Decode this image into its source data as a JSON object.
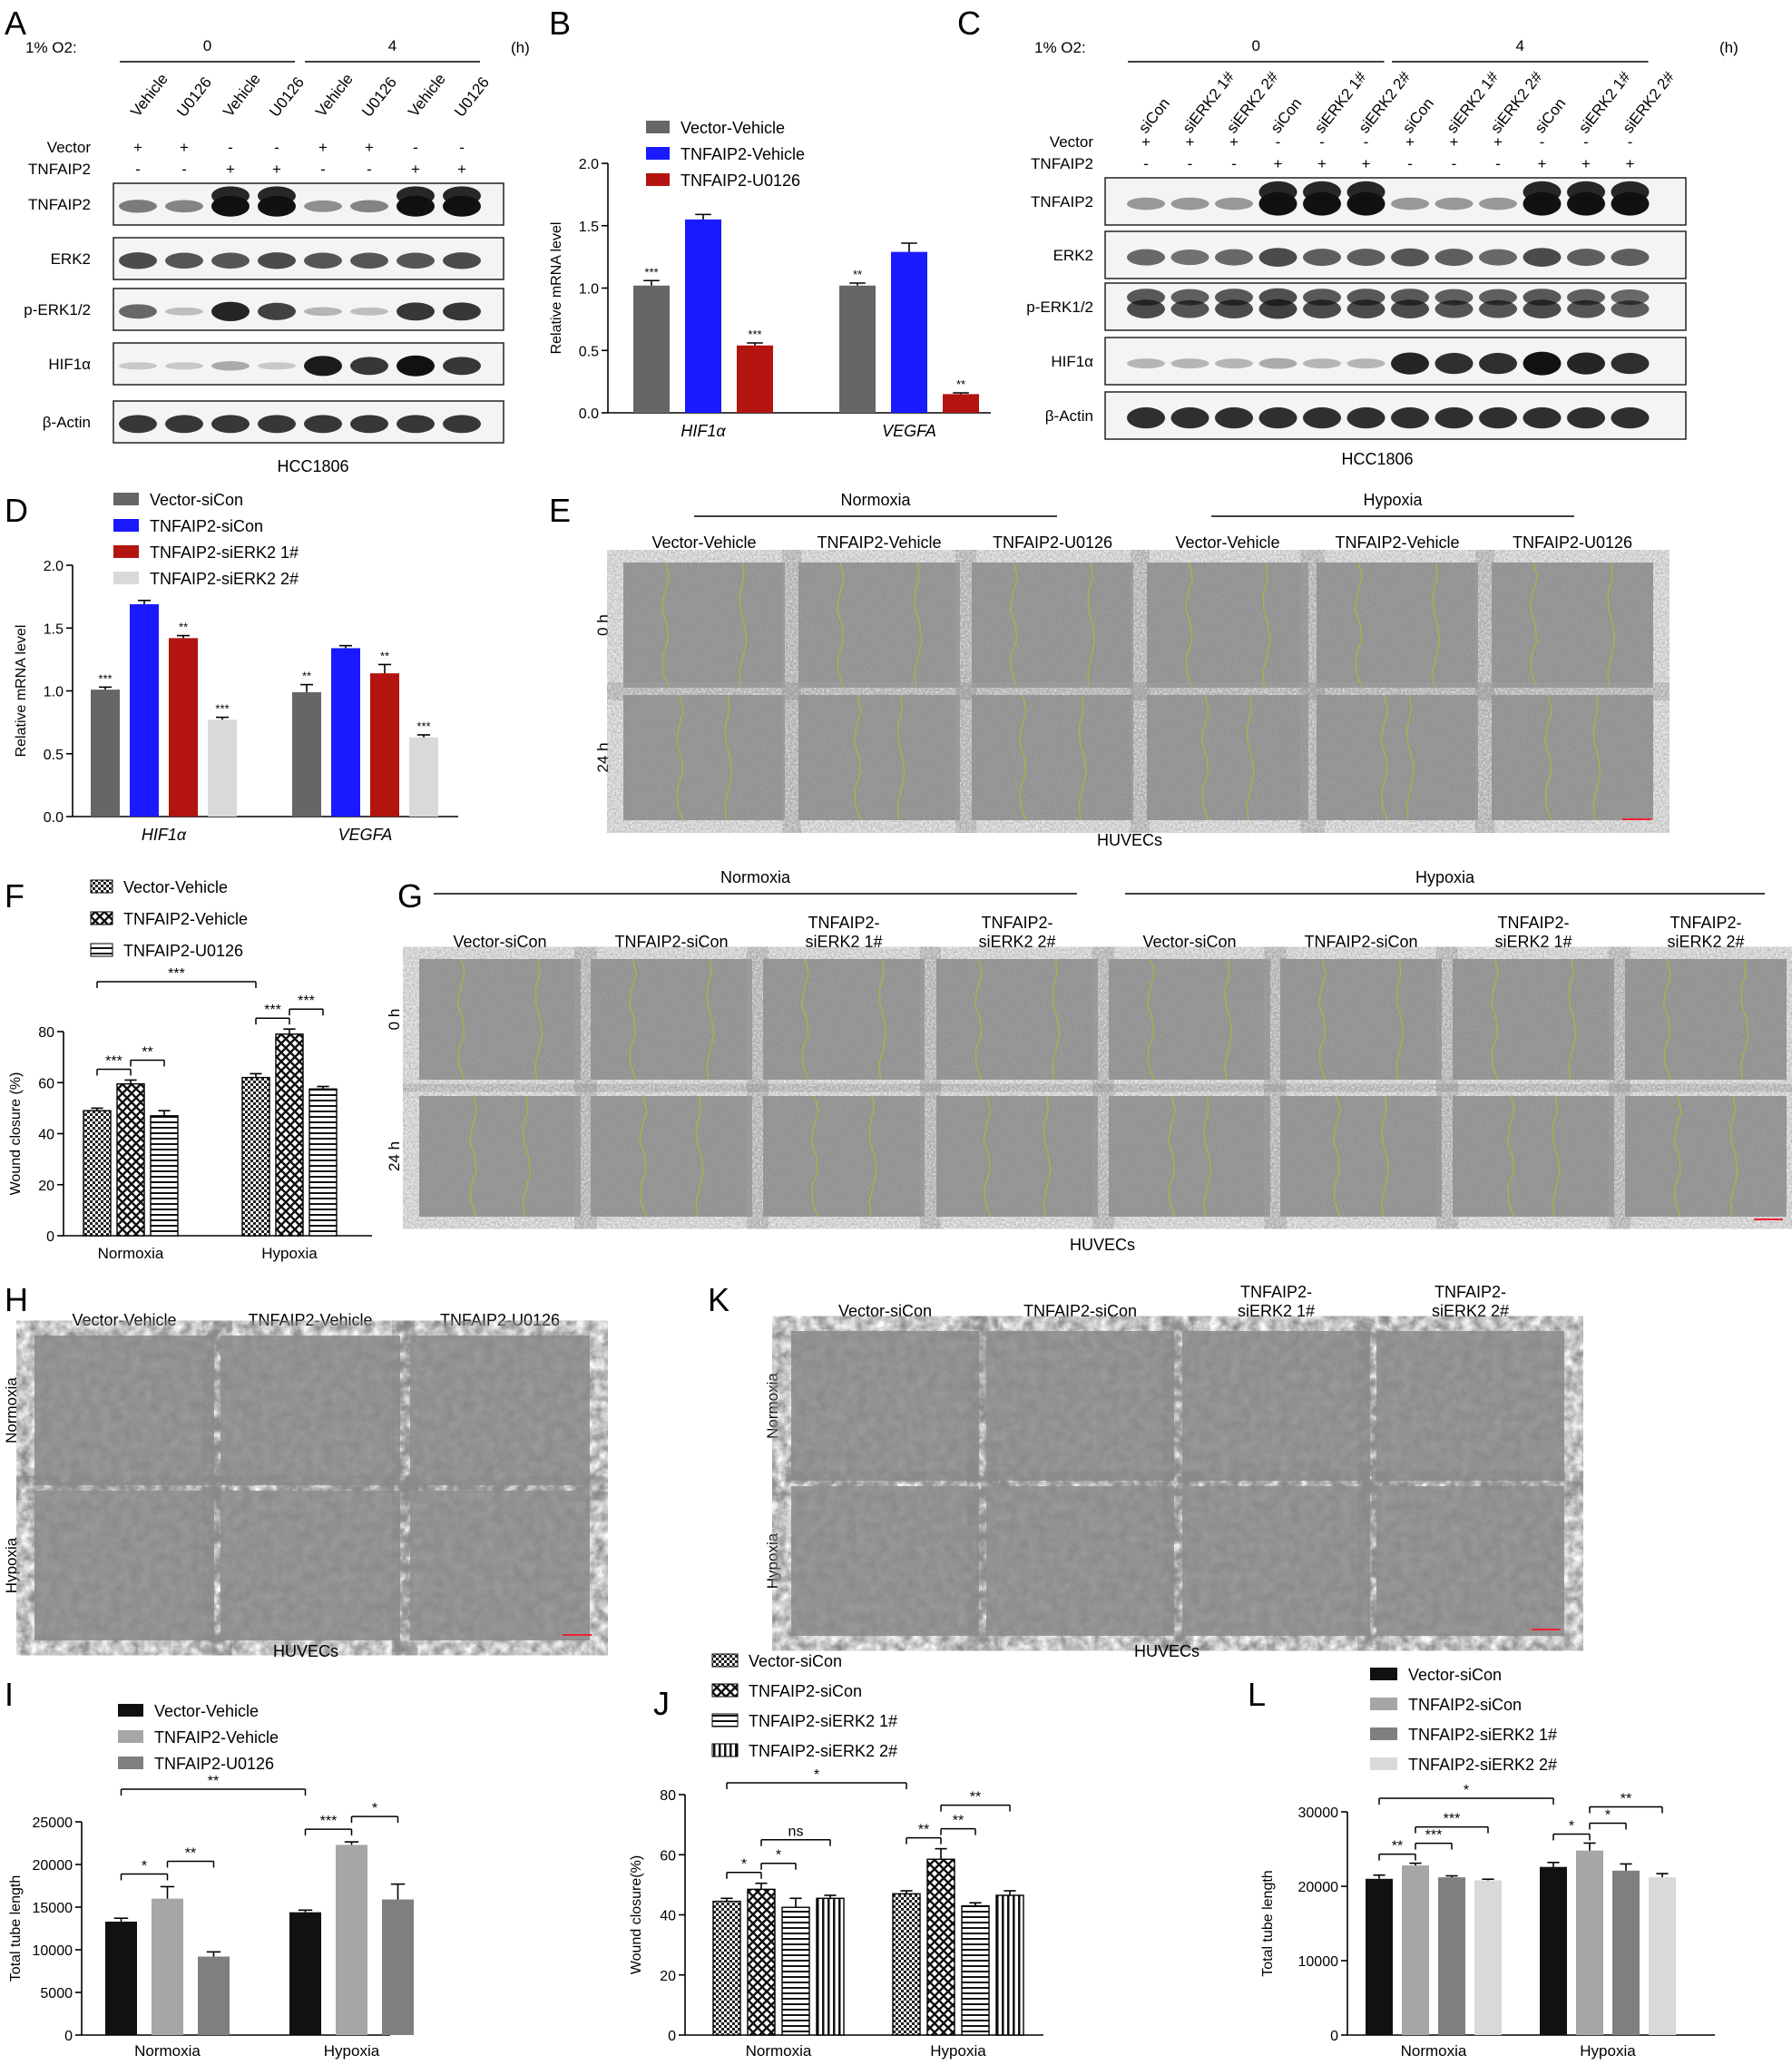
{
  "panel_letters": [
    "A",
    "B",
    "C",
    "D",
    "E",
    "F",
    "G",
    "H",
    "I",
    "J",
    "K",
    "L"
  ],
  "colors": {
    "gray": "#666666",
    "blue": "#1a1aff",
    "red": "#b3140f",
    "light": "#d9d9d9",
    "black": "#111111",
    "midgray": "#a6a6a6",
    "darkgray": "#7f7f7f",
    "wound": "#9bbf3a"
  },
  "A": {
    "o2_label": "1% O2:",
    "time_unit": "(h)",
    "times": [
      "0",
      "4"
    ],
    "lanes": [
      "Vehicle",
      "U0126",
      "Vehicle",
      "U0126",
      "Vehicle",
      "U0126",
      "Vehicle",
      "U0126"
    ],
    "vector_label": "Vector",
    "vector_signs": [
      "+",
      "+",
      "-",
      "-",
      "+",
      "+",
      "-",
      "-"
    ],
    "tnfaip2_label": "TNFAIP2",
    "tnfaip2_signs": [
      "-",
      "-",
      "+",
      "+",
      "-",
      "-",
      "+",
      "+"
    ],
    "blots": [
      "TNFAIP2",
      "ERK2",
      "p-ERK1/2",
      "HIF1α",
      "β-Actin"
    ],
    "cell_line": "HCC1806"
  },
  "C": {
    "o2_label": "1% O2:",
    "time_unit": "(h)",
    "times": [
      "0",
      "4"
    ],
    "lanes": [
      "siCon",
      "siERK2 1#",
      "siERK2 2#",
      "siCon",
      "siERK2 1#",
      "siERK2 2#",
      "siCon",
      "siERK2 1#",
      "siERK2 2#",
      "siCon",
      "siERK2 1#",
      "siERK2 2#"
    ],
    "vector_label": "Vector",
    "vector_signs": [
      "+",
      "+",
      "+",
      "-",
      "-",
      "-",
      "+",
      "+",
      "+",
      "-",
      "-",
      "-"
    ],
    "tnfaip2_label": "TNFAIP2",
    "tnfaip2_signs": [
      "-",
      "-",
      "-",
      "+",
      "+",
      "+",
      "-",
      "-",
      "-",
      "+",
      "+",
      "+"
    ],
    "blots": [
      "TNFAIP2",
      "ERK2",
      "p-ERK1/2",
      "HIF1α",
      "β-Actin"
    ],
    "cell_line": "HCC1806"
  },
  "E": {
    "groups": [
      "Normoxia",
      "Hypoxia"
    ],
    "columns": [
      "Vector-Vehicle",
      "TNFAIP2-Vehicle",
      "TNFAIP2-U0126",
      "Vector-Vehicle",
      "TNFAIP2-Vehicle",
      "TNFAIP2-U0126"
    ],
    "rows": [
      "0 h",
      "24 h"
    ],
    "caption": "HUVECs"
  },
  "I": {
    "groups": [
      "Normoxia",
      "Hypoxia"
    ],
    "columns": [
      [
        "Vector-siCon"
      ],
      [
        "TNFAIP2-siCon"
      ],
      [
        "TNFAIP2-",
        "siERK2 1#"
      ],
      [
        "TNFAIP2-",
        "siERK2 2#"
      ],
      [
        "Vector-siCon"
      ],
      [
        "TNFAIP2-siCon"
      ],
      [
        "TNFAIP2-",
        "siERK2 1#"
      ],
      [
        "TNFAIP2-",
        "siERK2 2#"
      ]
    ],
    "rows": [
      "0 h",
      "24 h"
    ],
    "caption": "HUVECs"
  },
  "G": {
    "columns": [
      "Vector-Vehicle",
      "TNFAIP2-Vehicle",
      "TNFAIP2-U0126"
    ],
    "rows": [
      "Normoxia",
      "Hypoxia"
    ],
    "caption": "HUVECs"
  },
  "K": {
    "columns": [
      [
        "Vector-siCon"
      ],
      [
        "TNFAIP2-siCon"
      ],
      [
        "TNFAIP2-",
        "siERK2 1#"
      ],
      [
        "TNFAIP2-",
        "siERK2 2#"
      ]
    ],
    "rows": [
      "Normoxia",
      "Hypoxia"
    ],
    "caption": "HUVECs"
  },
  "chart_data": [
    {
      "panel": "B",
      "type": "bar",
      "categories": [
        "HIF1α",
        "VEGFA"
      ],
      "ylabel": "Relative mRNA level",
      "ylim": [
        0,
        2.0
      ],
      "yticks": [
        "0.0",
        "0.5",
        "1.0",
        "1.5",
        "2.0"
      ],
      "series": [
        {
          "name": "Vector-Vehicle",
          "color": "#666666",
          "values": [
            1.02,
            1.02
          ],
          "errors": [
            0.04,
            0.02
          ],
          "sig": [
            "***",
            "**"
          ]
        },
        {
          "name": "TNFAIP2-Vehicle",
          "color": "#1a1aff",
          "values": [
            1.55,
            1.29
          ],
          "errors": [
            0.04,
            0.07
          ],
          "sig": [
            "",
            ""
          ]
        },
        {
          "name": "TNFAIP2-U0126",
          "color": "#b3140f",
          "values": [
            0.54,
            0.15
          ],
          "errors": [
            0.02,
            0.01
          ],
          "sig": [
            "***",
            "**"
          ]
        }
      ]
    },
    {
      "panel": "D",
      "type": "bar",
      "categories": [
        "HIF1α",
        "VEGFA"
      ],
      "ylabel": "Relative mRNA level",
      "ylim": [
        0,
        2.0
      ],
      "yticks": [
        "0.0",
        "0.5",
        "1.0",
        "1.5",
        "2.0"
      ],
      "series": [
        {
          "name": "Vector-siCon",
          "color": "#666666",
          "values": [
            1.01,
            0.99
          ],
          "errors": [
            0.02,
            0.06
          ],
          "sig": [
            "***",
            "**"
          ]
        },
        {
          "name": "TNFAIP2-siCon",
          "color": "#1a1aff",
          "values": [
            1.69,
            1.34
          ],
          "errors": [
            0.03,
            0.02
          ],
          "sig": [
            "",
            ""
          ]
        },
        {
          "name": "TNFAIP2-siERK2 1#",
          "color": "#b3140f",
          "values": [
            1.42,
            1.14
          ],
          "errors": [
            0.02,
            0.07
          ],
          "sig": [
            "**",
            "**"
          ]
        },
        {
          "name": "TNFAIP2-siERK2 2#",
          "color": "#d9d9d9",
          "values": [
            0.77,
            0.63
          ],
          "errors": [
            0.02,
            0.02
          ],
          "sig": [
            "***",
            "***"
          ]
        }
      ]
    },
    {
      "panel": "F",
      "type": "bar",
      "categories": [
        "Normoxia",
        "Hypoxia"
      ],
      "ylabel": "Wound closure (%)",
      "ylim": [
        0,
        80
      ],
      "yticks": [
        "0",
        "20",
        "40",
        "60",
        "80"
      ],
      "series": [
        {
          "name": "Vector-Vehicle",
          "pattern": "checker",
          "values": [
            49,
            62
          ],
          "errors": [
            1,
            1.5
          ]
        },
        {
          "name": "TNFAIP2-Vehicle",
          "pattern": "cross",
          "values": [
            59.5,
            79
          ],
          "errors": [
            1.5,
            2
          ]
        },
        {
          "name": "TNFAIP2-U0126",
          "pattern": "hlines",
          "values": [
            47,
            57.5
          ],
          "errors": [
            2,
            1
          ]
        }
      ],
      "brackets": [
        {
          "from": [
            0,
            0
          ],
          "to": [
            0,
            1
          ],
          "label": "***"
        },
        {
          "from": [
            0,
            1
          ],
          "to": [
            0,
            2
          ],
          "label": "**"
        },
        {
          "from": [
            1,
            0
          ],
          "to": [
            1,
            1
          ],
          "label": "***"
        },
        {
          "from": [
            1,
            1
          ],
          "to": [
            1,
            2
          ],
          "label": "***"
        },
        {
          "from": [
            0,
            0
          ],
          "to": [
            1,
            0
          ],
          "label": "***"
        }
      ]
    },
    {
      "panel": "H",
      "type": "bar",
      "categories": [
        "Normoxia",
        "Hypoxia"
      ],
      "ylabel": "Total tube length",
      "ylim": [
        0,
        25000
      ],
      "yticks": [
        "0",
        "5000",
        "10000",
        "15000",
        "20000",
        "25000"
      ],
      "series": [
        {
          "name": "Vector-Vehicle",
          "color": "#111111",
          "values": [
            13300,
            14400
          ],
          "errors": [
            400,
            250
          ]
        },
        {
          "name": "TNFAIP2-Vehicle",
          "color": "#a6a6a6",
          "values": [
            16000,
            22300
          ],
          "errors": [
            1400,
            350
          ]
        },
        {
          "name": "TNFAIP2-U0126",
          "color": "#7f7f7f",
          "values": [
            9200,
            15900
          ],
          "errors": [
            550,
            1800
          ]
        }
      ],
      "brackets": [
        {
          "from": [
            0,
            0
          ],
          "to": [
            0,
            1
          ],
          "label": "*"
        },
        {
          "from": [
            0,
            1
          ],
          "to": [
            0,
            2
          ],
          "label": "**"
        },
        {
          "from": [
            1,
            0
          ],
          "to": [
            1,
            1
          ],
          "label": "***"
        },
        {
          "from": [
            1,
            1
          ],
          "to": [
            1,
            2
          ],
          "label": "*"
        },
        {
          "from": [
            0,
            0
          ],
          "to": [
            1,
            0
          ],
          "label": "**"
        }
      ]
    },
    {
      "panel": "J",
      "type": "bar",
      "categories": [
        "Normoxia",
        "Hypoxia"
      ],
      "ylabel": "Wound closure(%)",
      "ylim": [
        0,
        80
      ],
      "yticks": [
        "0",
        "20",
        "40",
        "60",
        "80"
      ],
      "series": [
        {
          "name": "Vector-siCon",
          "pattern": "checker",
          "values": [
            44.5,
            47
          ],
          "errors": [
            1,
            1
          ]
        },
        {
          "name": "TNFAIP2-siCon",
          "pattern": "cross",
          "values": [
            48.5,
            58.5
          ],
          "errors": [
            2,
            3.5
          ]
        },
        {
          "name": "TNFAIP2-siERK2 1#",
          "pattern": "hlines",
          "values": [
            42.5,
            43
          ],
          "errors": [
            3,
            1
          ]
        },
        {
          "name": "TNFAIP2-siERK2 2#",
          "pattern": "vlines",
          "values": [
            45.5,
            46.5
          ],
          "errors": [
            1,
            1.5
          ]
        }
      ],
      "brackets": [
        {
          "from": [
            0,
            0
          ],
          "to": [
            0,
            1
          ],
          "label": "*"
        },
        {
          "from": [
            0,
            1
          ],
          "to": [
            0,
            2
          ],
          "label": "*"
        },
        {
          "from": [
            0,
            1
          ],
          "to": [
            0,
            3
          ],
          "label": "ns"
        },
        {
          "from": [
            1,
            0
          ],
          "to": [
            1,
            1
          ],
          "label": "**"
        },
        {
          "from": [
            1,
            1
          ],
          "to": [
            1,
            2
          ],
          "label": "**"
        },
        {
          "from": [
            1,
            1
          ],
          "to": [
            1,
            3
          ],
          "label": "**"
        },
        {
          "from": [
            0,
            0
          ],
          "to": [
            1,
            0
          ],
          "label": "*"
        }
      ]
    },
    {
      "panel": "L",
      "type": "bar",
      "categories": [
        "Normoxia",
        "Hypoxia"
      ],
      "ylabel": "Total tube length",
      "ylim": [
        0,
        30000
      ],
      "yticks": [
        "0",
        "10000",
        "20000",
        "30000"
      ],
      "series": [
        {
          "name": "Vector-siCon",
          "color": "#111111",
          "values": [
            21000,
            22600
          ],
          "errors": [
            500,
            600
          ]
        },
        {
          "name": "TNFAIP2-siCon",
          "color": "#a6a6a6",
          "values": [
            22800,
            24800
          ],
          "errors": [
            300,
            1000
          ]
        },
        {
          "name": "TNFAIP2-siERK2 1#",
          "color": "#7f7f7f",
          "values": [
            21200,
            22100
          ],
          "errors": [
            200,
            900
          ]
        },
        {
          "name": "TNFAIP2-siERK2 2#",
          "color": "#d9d9d9",
          "values": [
            20800,
            21200
          ],
          "errors": [
            150,
            500
          ]
        }
      ],
      "brackets": [
        {
          "from": [
            0,
            0
          ],
          "to": [
            0,
            1
          ],
          "label": "**"
        },
        {
          "from": [
            0,
            1
          ],
          "to": [
            0,
            2
          ],
          "label": "***"
        },
        {
          "from": [
            0,
            1
          ],
          "to": [
            0,
            3
          ],
          "label": "***"
        },
        {
          "from": [
            1,
            0
          ],
          "to": [
            1,
            1
          ],
          "label": "*"
        },
        {
          "from": [
            1,
            1
          ],
          "to": [
            1,
            2
          ],
          "label": "*"
        },
        {
          "from": [
            1,
            1
          ],
          "to": [
            1,
            3
          ],
          "label": "**"
        },
        {
          "from": [
            0,
            0
          ],
          "to": [
            1,
            0
          ],
          "label": "*"
        }
      ]
    }
  ]
}
